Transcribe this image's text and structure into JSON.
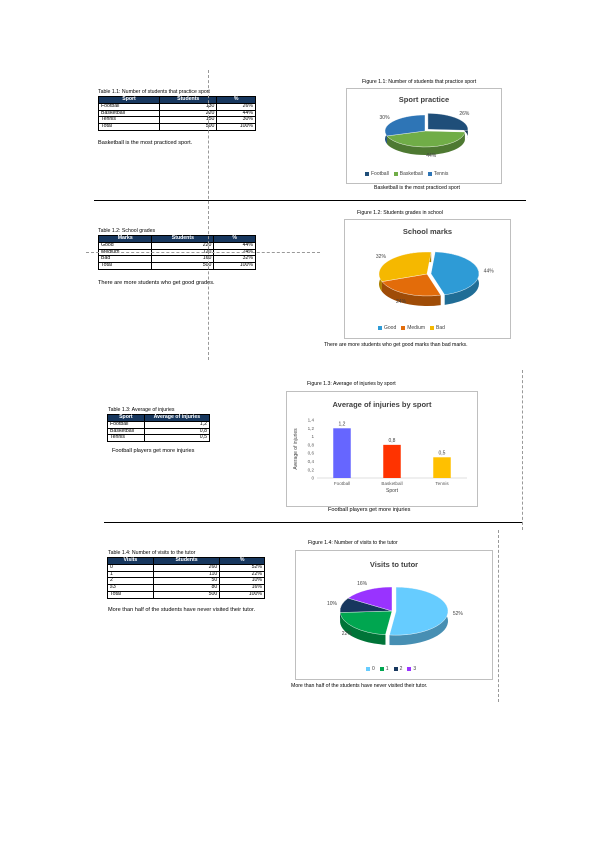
{
  "sections": [
    {
      "table_caption": "Table 1.1: Number of students that practice sport",
      "headers": [
        "Sport",
        "Students",
        "%"
      ],
      "rows": [
        [
          "Football",
          "130",
          "26%"
        ],
        [
          "Basketball",
          "220",
          "44%"
        ],
        [
          "Tennis",
          "150",
          "30%"
        ],
        [
          "Total",
          "500",
          "100%"
        ]
      ],
      "note": "Basketball is the most practiced sport.",
      "figure_caption": "Figure 1.1: Number of students that practice sport",
      "chart_note": "Basketball is the most practiced sport"
    },
    {
      "table_caption": "Table 1.2: School grades",
      "headers": [
        "Marks",
        "Students",
        "%"
      ],
      "rows": [
        [
          "Good",
          "220",
          "44%"
        ],
        [
          "Medium",
          "120",
          "24%"
        ],
        [
          "Bad",
          "160",
          "32%"
        ],
        [
          "Total",
          "500",
          "100%"
        ]
      ],
      "note": "There are more students who get good grades.",
      "figure_caption": "Figure 1.2: Students grades in school",
      "chart_note": "There are more students who get good marks than bad marks."
    },
    {
      "table_caption": "Table 1.3: Average of injuries",
      "headers": [
        "Sport",
        "Average of injuries"
      ],
      "rows": [
        [
          "Football",
          "1,2"
        ],
        [
          "Basketball",
          "0,8"
        ],
        [
          "Tennis",
          "0,5"
        ]
      ],
      "note": "Football players get more injuries",
      "figure_caption": "Figure 1.3: Average of injuries by sport",
      "chart_note": "Football players get more injuries"
    },
    {
      "table_caption": "Table 1.4: Number of visits to the tutor",
      "headers": [
        "Visits",
        "Students",
        "%"
      ],
      "rows": [
        [
          "0",
          "260",
          "52%"
        ],
        [
          "1",
          "110",
          "22%"
        ],
        [
          "2",
          "50",
          "10%"
        ],
        [
          "≥3",
          "80",
          "16%"
        ],
        [
          "Total",
          "500",
          "100%"
        ]
      ],
      "note": "More than half of the students have never visited their tutor.",
      "note_line2": "their tutor.",
      "figure_caption": "Figure 1.4: Number of visits to the tutor",
      "chart_note": "More than half of the students have never visited their tutor."
    }
  ],
  "chart_data": [
    {
      "type": "pie",
      "title": "Sport practice",
      "categories": [
        "Football",
        "Basketball",
        "Tennis"
      ],
      "values": [
        26,
        44,
        30
      ],
      "labels": [
        "26%",
        "44%",
        "30%"
      ],
      "colors": [
        "#1f4e79",
        "#70ad47",
        "#2e75b6"
      ],
      "legend": "bottom"
    },
    {
      "type": "pie",
      "title": "School marks",
      "categories": [
        "Good",
        "Medium",
        "Bad"
      ],
      "values": [
        44,
        24,
        32
      ],
      "labels": [
        "44%",
        "24%",
        "32%"
      ],
      "colors": [
        "#2e9bd6",
        "#e36c0a",
        "#f5b800"
      ],
      "legend": "bottom"
    },
    {
      "type": "bar",
      "title": "Average of injuries by sport",
      "categories": [
        "Football",
        "Basketball",
        "Tennis"
      ],
      "values": [
        1.2,
        0.8,
        0.5
      ],
      "data_labels": [
        "1,2",
        "0,8",
        "0,5"
      ],
      "yticks": [
        "0",
        "0,2",
        "0,4",
        "0,6",
        "0,8",
        "1",
        "1,2",
        "1,4"
      ],
      "ylim": [
        0,
        1.4
      ],
      "xlabel": "Sport",
      "ylabel": "Average of injuries",
      "colors": [
        "#6666ff",
        "#ff3300",
        "#ffc000"
      ],
      "grid": false
    },
    {
      "type": "pie",
      "title": "Visits to tutor",
      "categories": [
        "0",
        "1",
        "2",
        "3"
      ],
      "values": [
        52,
        22,
        10,
        16
      ],
      "labels": [
        "52%",
        "22%",
        "10%",
        "16%"
      ],
      "colors": [
        "#66ccff",
        "#00a650",
        "#17375e",
        "#9933ff"
      ],
      "legend": "bottom"
    }
  ]
}
